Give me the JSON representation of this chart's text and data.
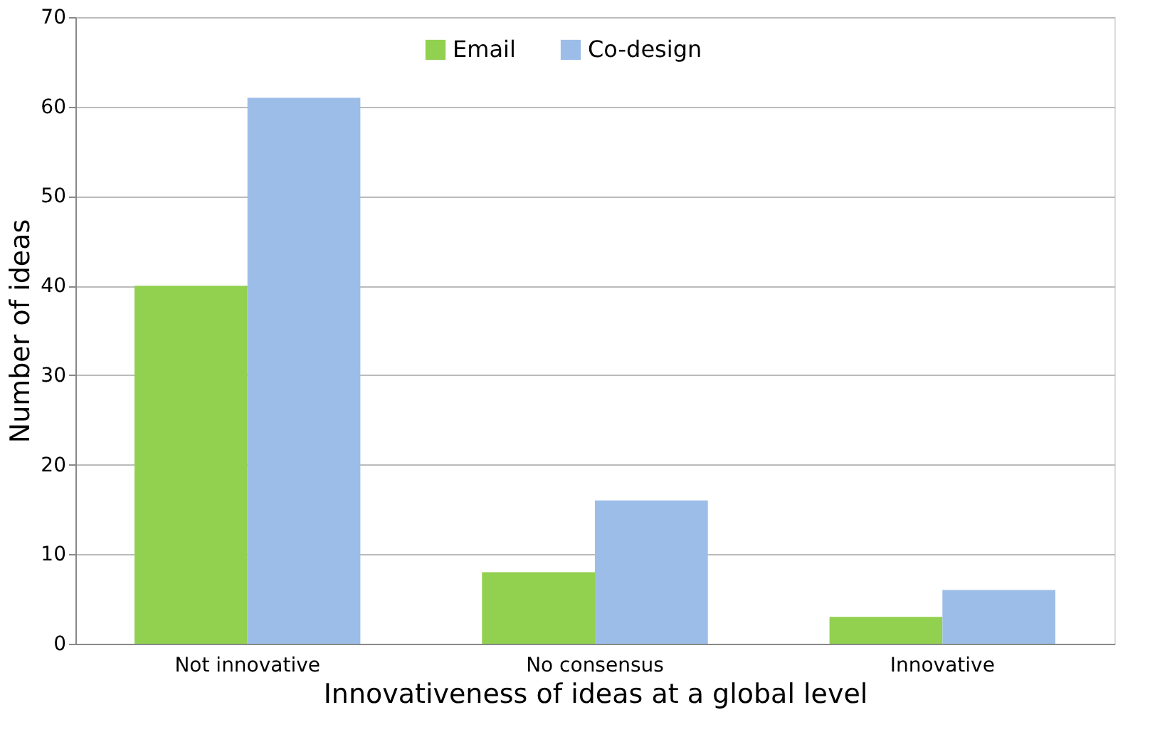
{
  "chart_data": {
    "type": "bar",
    "xlabel": "Innovativeness of ideas at a global level",
    "ylabel": "Number of ideas",
    "categories": [
      "Not innovative",
      "No consensus",
      "Innovative"
    ],
    "series": [
      {
        "name": "Email",
        "color": "#92d050",
        "values": [
          40,
          8,
          3
        ]
      },
      {
        "name": "Co-design",
        "color": "#9dbde9",
        "values": [
          61,
          16,
          6
        ]
      }
    ],
    "ylim": [
      0,
      70
    ],
    "yticks": [
      0,
      10,
      20,
      30,
      40,
      50,
      60,
      70
    ],
    "grid": "y",
    "legend": "top"
  }
}
